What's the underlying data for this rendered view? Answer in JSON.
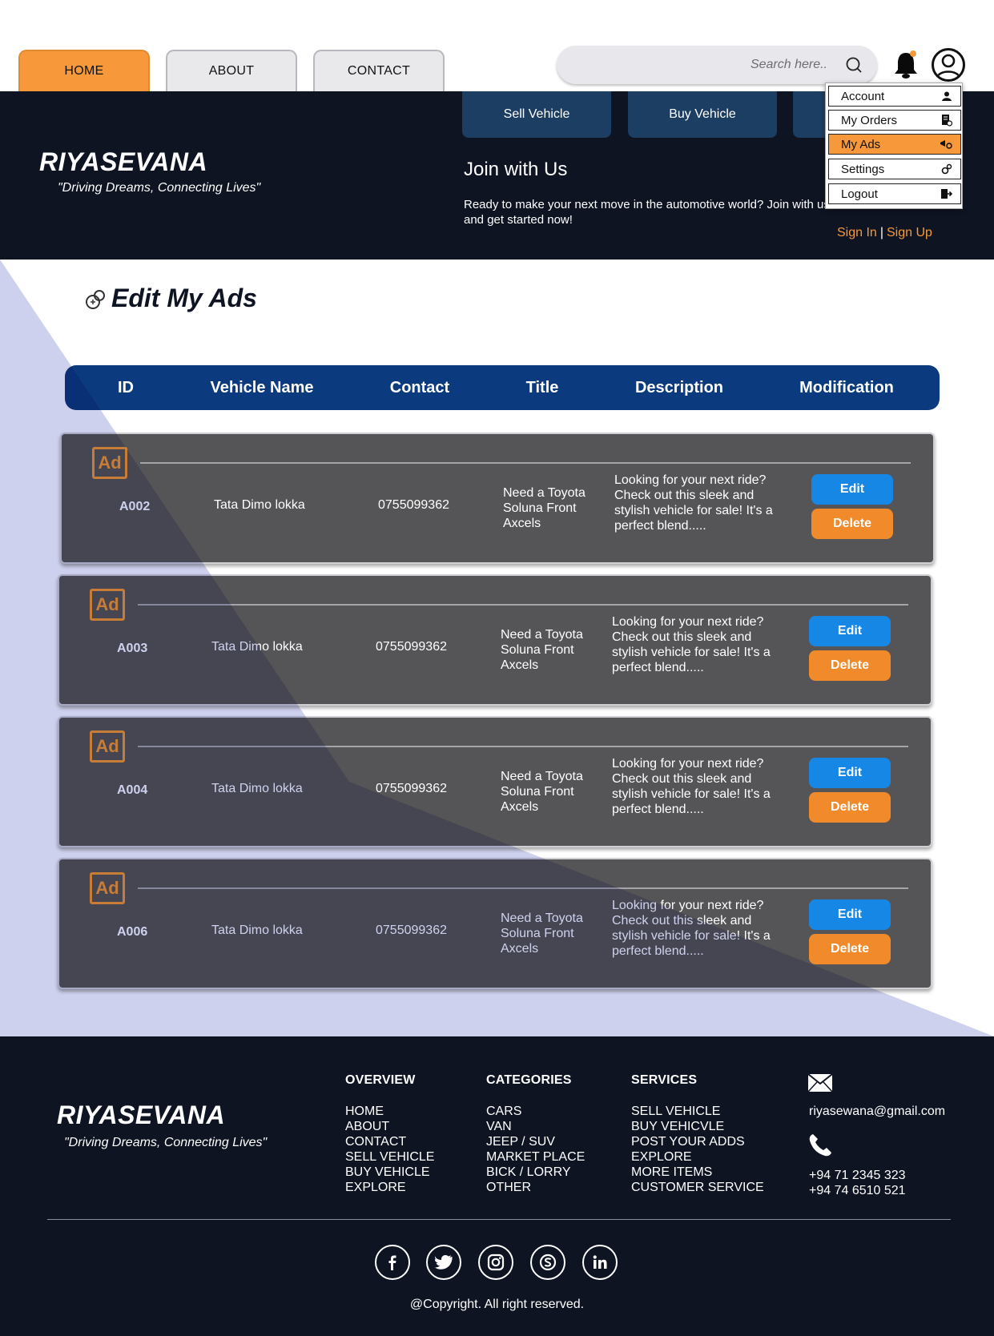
{
  "nav": {
    "tabs": [
      {
        "label": "HOME",
        "active": true
      },
      {
        "label": "ABOUT",
        "active": false
      },
      {
        "label": "CONTACT",
        "active": false
      }
    ],
    "search_placeholder": "Search here.."
  },
  "header": {
    "brand": "RIYASEVANA",
    "tagline": "\"Driving Dreams, Connecting Lives\"",
    "buttons": [
      "Sell Vehicle",
      "Buy Vehicle"
    ],
    "join_title": "Join with Us",
    "join_text": "Ready to make your next move in the automotive world? Join with us and get started now!",
    "sign_in": "Sign In",
    "sign_up": "Sign Up",
    "separator": "|"
  },
  "dropdown": {
    "items": [
      {
        "label": "Account",
        "icon": "user-icon",
        "active": false
      },
      {
        "label": "My Orders",
        "icon": "orders-icon",
        "active": false
      },
      {
        "label": "My Ads",
        "icon": "ads-icon",
        "active": true
      },
      {
        "label": "Settings",
        "icon": "gear-icon",
        "active": false
      },
      {
        "label": "Logout",
        "icon": "logout-icon",
        "active": false
      }
    ]
  },
  "main": {
    "title": "Edit My Ads",
    "columns": [
      "ID",
      "Vehicle Name",
      "Contact",
      "Title",
      "Description",
      "Modification"
    ],
    "ads": [
      {
        "id": "A002",
        "vehicle": "Tata Dimo lokka",
        "contact": "0755099362",
        "title": "Need a Toyota Soluna Front Axcels",
        "description": "Looking for your next ride? Check out this sleek and stylish vehicle for sale! It's a perfect blend.....",
        "edit": "Edit",
        "delete": "Delete"
      },
      {
        "id": "A003",
        "vehicle": "Tata Dimo lokka",
        "contact": "0755099362",
        "title": "Need a Toyota Soluna Front Axcels",
        "description": "Looking for your next ride? Check out this sleek and stylish vehicle for sale! It's a perfect blend.....",
        "edit": "Edit",
        "delete": "Delete"
      },
      {
        "id": "A004",
        "vehicle": "Tata Dimo lokka",
        "contact": "0755099362",
        "title": "Need a Toyota Soluna Front Axcels",
        "description": "Looking for your next ride? Check out this sleek and stylish vehicle for sale! It's a perfect blend.....",
        "edit": "Edit",
        "delete": "Delete"
      },
      {
        "id": "A006",
        "vehicle": "Tata Dimo lokka",
        "contact": "0755099362",
        "title": "Need a Toyota Soluna Front Axcels",
        "description": "Looking for your next ride? Check out this sleek and stylish vehicle for sale! It's a perfect blend.....",
        "edit": "Edit",
        "delete": "Delete"
      }
    ],
    "ad_badge": "Ad"
  },
  "footer": {
    "brand": "RIYASEVANA",
    "tagline": "\"Driving Dreams, Connecting Lives\"",
    "overview": {
      "heading": "OVERVIEW",
      "items": [
        "HOME",
        "ABOUT",
        "CONTACT",
        "SELL VEHICLE",
        "BUY VEHICLE",
        "EXPLORE"
      ]
    },
    "categories": {
      "heading": "CATEGORIES",
      "items": [
        "CARS",
        "VAN",
        "JEEP / SUV",
        "MARKET PLACE",
        "BICK / LORRY",
        "OTHER"
      ]
    },
    "services": {
      "heading": "SERVICES",
      "items": [
        "SELL VEHICLE",
        "BUY VEHICVLE",
        "POST YOUR ADDS",
        "EXPLORE",
        "MORE ITEMS",
        "CUSTOMER SERVICE"
      ]
    },
    "email": "riyasewana@gmail.com",
    "phones": [
      "+94 71 2345 323",
      "+94 74 6510 521"
    ],
    "social": [
      "facebook-icon",
      "twitter-icon",
      "instagram-icon",
      "skype-icon",
      "linkedin-icon"
    ],
    "copyright": "@Copyright. All right reserved."
  },
  "colors": {
    "accent": "#f7993a",
    "navy": "#0e1422",
    "table_header": "#0b3a7e",
    "edit_button": "#1687e4",
    "delete_button": "#f08a2a",
    "diagonal": "#9da3dc"
  }
}
